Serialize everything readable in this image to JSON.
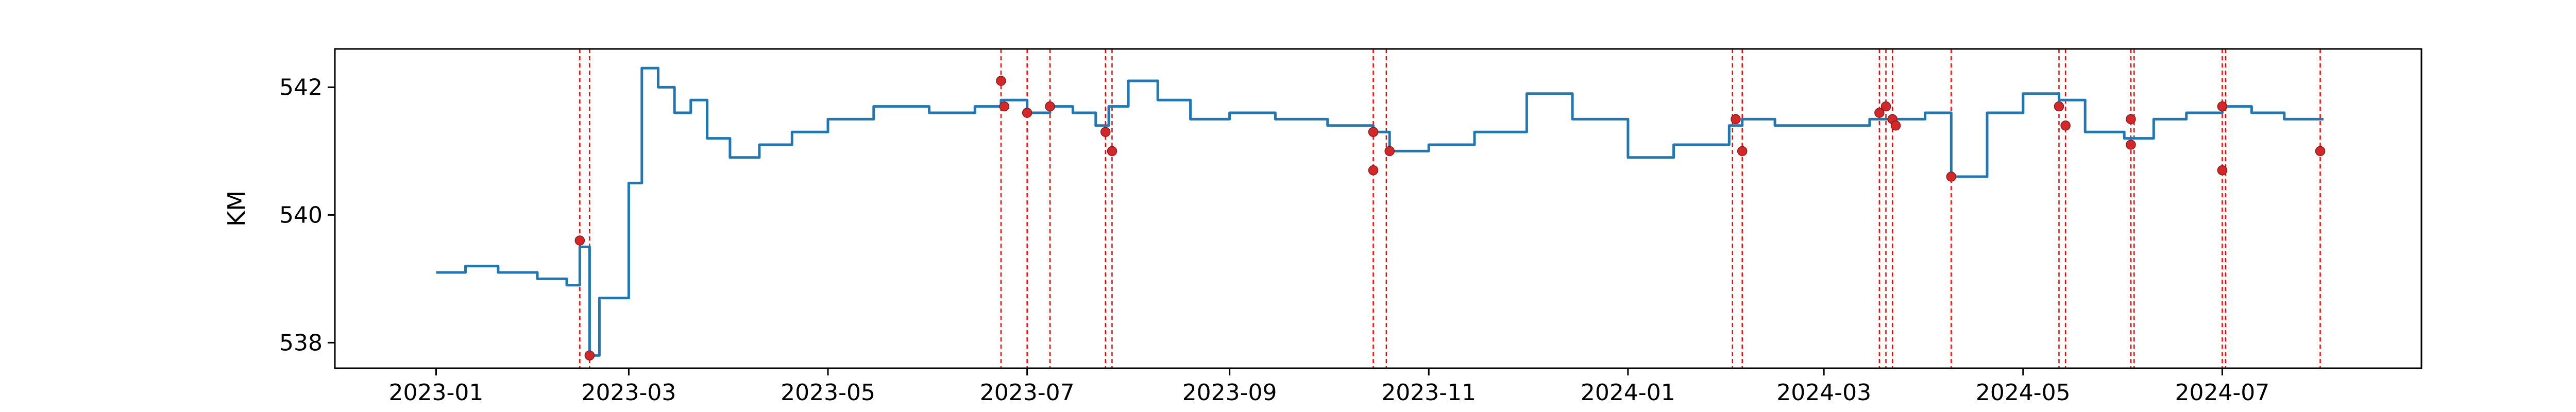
{
  "chart_data": {
    "type": "line",
    "title": "",
    "xlabel": "",
    "ylabel": "KM",
    "x_ticks": [
      "2023-01",
      "2023-03",
      "2023-05",
      "2023-07",
      "2023-09",
      "2023-11",
      "2024-01",
      "2024-03",
      "2024-05",
      "2024-07"
    ],
    "y_ticks": [
      538,
      540,
      542
    ],
    "xlim": [
      "2022-12-01",
      "2024-08-31"
    ],
    "ylim": [
      537.6,
      542.6
    ],
    "grid": false,
    "legend": "none",
    "colors": {
      "line": "#1f77b4",
      "marker": "#d62728",
      "event_line": "#ff0000",
      "frame": "#000000"
    },
    "series": [
      {
        "type": "line",
        "x": [
          "2023-01-01",
          "2023-01-10",
          "2023-01-20",
          "2023-02-01",
          "2023-02-10",
          "2023-02-14",
          "2023-02-17",
          "2023-02-20",
          "2023-02-25",
          "2023-03-01",
          "2023-03-05",
          "2023-03-10",
          "2023-03-15",
          "2023-03-20",
          "2023-03-25",
          "2023-04-01",
          "2023-04-10",
          "2023-04-20",
          "2023-05-01",
          "2023-05-15",
          "2023-06-01",
          "2023-06-15",
          "2023-06-23",
          "2023-07-01",
          "2023-07-08",
          "2023-07-15",
          "2023-07-22",
          "2023-07-26",
          "2023-08-01",
          "2023-08-10",
          "2023-08-20",
          "2023-09-01",
          "2023-09-15",
          "2023-10-01",
          "2023-10-15",
          "2023-10-20",
          "2023-11-01",
          "2023-11-15",
          "2023-12-01",
          "2023-12-15",
          "2024-01-01",
          "2024-01-15",
          "2024-02-01",
          "2024-02-05",
          "2024-02-15",
          "2024-03-01",
          "2024-03-15",
          "2024-03-22",
          "2024-04-01",
          "2024-04-09",
          "2024-04-20",
          "2024-05-01",
          "2024-05-12",
          "2024-05-20",
          "2024-06-01",
          "2024-06-10",
          "2024-06-20",
          "2024-07-01",
          "2024-07-10",
          "2024-07-20",
          "2024-08-01"
        ],
        "y": [
          539.1,
          539.2,
          539.1,
          539.0,
          538.9,
          539.5,
          537.8,
          538.7,
          538.7,
          540.5,
          542.3,
          542.0,
          541.6,
          541.8,
          541.2,
          540.9,
          541.1,
          541.3,
          541.5,
          541.7,
          541.6,
          541.7,
          541.8,
          541.6,
          541.7,
          541.6,
          541.4,
          541.7,
          542.1,
          541.8,
          541.5,
          541.6,
          541.5,
          541.4,
          541.3,
          541.0,
          541.1,
          541.3,
          541.9,
          541.5,
          540.9,
          541.1,
          541.4,
          541.5,
          541.4,
          541.4,
          541.5,
          541.5,
          541.6,
          540.6,
          541.6,
          541.9,
          541.8,
          541.3,
          541.2,
          541.5,
          541.6,
          541.7,
          541.6,
          541.5,
          541.5
        ]
      }
    ],
    "events": [
      "2023-02-14",
      "2023-02-17",
      "2023-06-23",
      "2023-07-01",
      "2023-07-08",
      "2023-07-25",
      "2023-07-27",
      "2023-10-15",
      "2023-10-19",
      "2024-02-02",
      "2024-02-05",
      "2024-03-18",
      "2024-03-20",
      "2024-03-22",
      "2024-04-09",
      "2024-05-12",
      "2024-05-14",
      "2024-06-03",
      "2024-06-04",
      "2024-07-01",
      "2024-07-02",
      "2024-07-31"
    ],
    "event_points": [
      {
        "x": "2023-02-14",
        "y": 539.6
      },
      {
        "x": "2023-02-17",
        "y": 537.8
      },
      {
        "x": "2023-06-23",
        "y": 542.1
      },
      {
        "x": "2023-06-24",
        "y": 541.7
      },
      {
        "x": "2023-07-01",
        "y": 541.6
      },
      {
        "x": "2023-07-08",
        "y": 541.7
      },
      {
        "x": "2023-07-25",
        "y": 541.3
      },
      {
        "x": "2023-07-27",
        "y": 541.0
      },
      {
        "x": "2023-10-15",
        "y": 541.3
      },
      {
        "x": "2023-10-15",
        "y": 540.7
      },
      {
        "x": "2023-10-20",
        "y": 541.0
      },
      {
        "x": "2024-02-03",
        "y": 541.5
      },
      {
        "x": "2024-02-05",
        "y": 541.0
      },
      {
        "x": "2024-03-18",
        "y": 541.6
      },
      {
        "x": "2024-03-20",
        "y": 541.7
      },
      {
        "x": "2024-03-22",
        "y": 541.5
      },
      {
        "x": "2024-03-23",
        "y": 541.4
      },
      {
        "x": "2024-04-09",
        "y": 540.6
      },
      {
        "x": "2024-05-12",
        "y": 541.7
      },
      {
        "x": "2024-05-14",
        "y": 541.4
      },
      {
        "x": "2024-06-03",
        "y": 541.5
      },
      {
        "x": "2024-06-03",
        "y": 541.1
      },
      {
        "x": "2024-07-01",
        "y": 541.7
      },
      {
        "x": "2024-07-01",
        "y": 540.7
      },
      {
        "x": "2024-07-31",
        "y": 541.0
      }
    ]
  }
}
